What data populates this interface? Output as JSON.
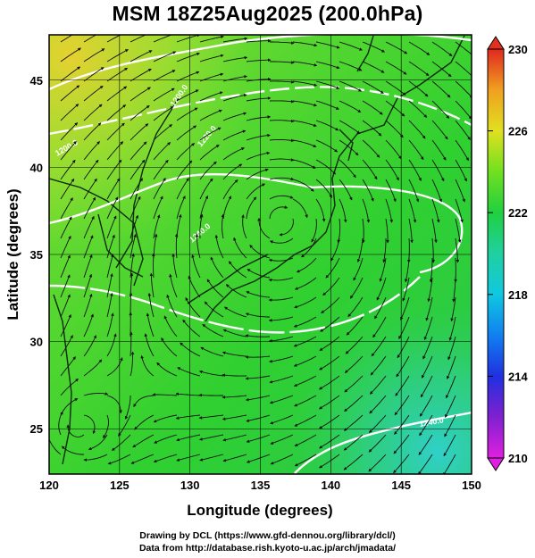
{
  "title": "MSM 18Z25Aug2025 (200.0hPa)",
  "x_axis": {
    "label": "Longitude (degrees)",
    "ticks": [
      "120",
      "125",
      "130",
      "135",
      "140",
      "145",
      "150"
    ]
  },
  "y_axis": {
    "label": "Latitude  (degrees)",
    "ticks": [
      "25",
      "30",
      "35",
      "40",
      "45"
    ]
  },
  "colorbar": {
    "ticks": [
      "210",
      "214",
      "218",
      "222",
      "226",
      "230"
    ],
    "colors": [
      "#e020e0",
      "#6020d0",
      "#2040e0",
      "#10b0e0",
      "#20d0b0",
      "#20d040",
      "#80e020",
      "#e0e020",
      "#f0a020",
      "#e03020"
    ]
  },
  "contour_labels": [
    "1200.0",
    "1220.0",
    "1240.0",
    "1200.0",
    "1240.0"
  ],
  "credits": {
    "line1": "Drawing by DCL (https://www.gfd-dennou.org/library/dcl/)",
    "line2": "Data from http://database.rish.kyoto-u.ac.jp/arch/jmadata/"
  },
  "chart_data": {
    "type": "heatmap",
    "title": "MSM 18Z25Aug2025 (200.0hPa)",
    "xlabel": "Longitude (degrees)",
    "ylabel": "Latitude  (degrees)",
    "xlim": [
      120,
      150
    ],
    "ylim": [
      22.4,
      47.6
    ],
    "colorbar_range": [
      210,
      230
    ],
    "colorbar_ticks": [
      210,
      214,
      218,
      222,
      226,
      230
    ],
    "field_regions": [
      {
        "region": "north-west (120-126E, 38-47N)",
        "value": 226
      },
      {
        "region": "main domain",
        "value": 222
      },
      {
        "region": "south-east (143-150E, 23-28N)",
        "value": 218
      }
    ],
    "streamlines": {
      "anticyclone_center": [
        136.5,
        37
      ],
      "secondary_vortex_center": [
        122,
        25
      ]
    },
    "grid": true
  }
}
